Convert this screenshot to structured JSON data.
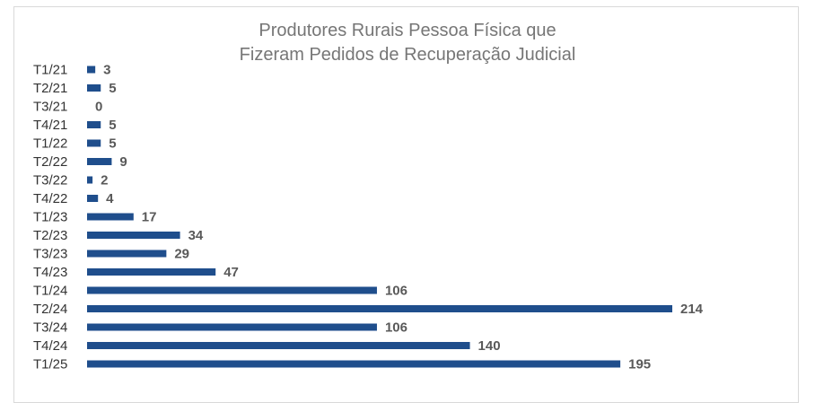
{
  "chart_data": {
    "type": "bar",
    "orientation": "horizontal",
    "title": "Produtores Rurais Pessoa Física que Fizeram Pedidos de Recuperação Judicial",
    "title_lines": [
      "Produtores Rurais Pessoa Física que",
      "Fizeram Pedidos de Recuperação Judicial"
    ],
    "categories": [
      "T1/21",
      "T2/21",
      "T3/21",
      "T4/21",
      "T1/22",
      "T2/22",
      "T3/22",
      "T4/22",
      "T1/23",
      "T2/23",
      "T3/23",
      "T4/23",
      "T1/24",
      "T2/24",
      "T3/24",
      "T4/24",
      "T1/25"
    ],
    "values": [
      3,
      5,
      0,
      5,
      5,
      9,
      2,
      4,
      17,
      34,
      29,
      47,
      106,
      214,
      106,
      140,
      195
    ],
    "data_labels": true,
    "xlim": [
      0,
      214
    ],
    "grid": false,
    "legend": "none",
    "bar_color": "#1f4e8c"
  }
}
